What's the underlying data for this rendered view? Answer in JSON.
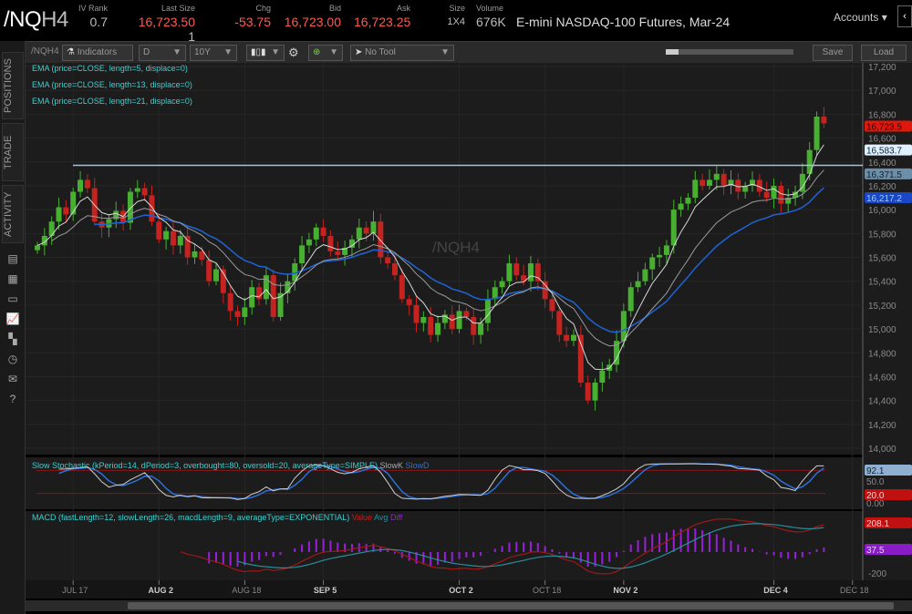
{
  "header": {
    "symbol_main": "/NQ",
    "symbol_suffix": "H4",
    "quotes": [
      {
        "label": "IV Rank",
        "value": "0.7"
      },
      {
        "label": "Last Size",
        "value": "16,723.50",
        "size": "1"
      },
      {
        "label": "Chg",
        "value": "-53.75"
      },
      {
        "label": "Bid",
        "value": "16,723.00"
      },
      {
        "label": "Ask",
        "value": "16,723.25"
      },
      {
        "label": "Size",
        "value": "1X4"
      },
      {
        "label": "Volume",
        "value": "676K"
      }
    ],
    "description": "E-mini NASDAQ-100 Futures, Mar-24",
    "accounts": "Accounts"
  },
  "toolbar": {
    "symbol": "/NQH4",
    "indicators": "Indicators",
    "aggregation": "D",
    "timeframe": "10Y",
    "tool": "No Tool",
    "save": "Save",
    "load": "Load"
  },
  "sidebar": {
    "tabs": [
      "POSITIONS",
      "TRADE",
      "ACTIVITY"
    ]
  },
  "studies": [
    "EMA (price=CLOSE, length=5, displace=0)",
    "EMA (price=CLOSE, length=13, displace=0)",
    "EMA (price=CLOSE, length=21, displace=0)"
  ],
  "watermark": "/NQH4",
  "price_labels": {
    "last": "16,723.5",
    "ema5": "16,583.7",
    "hline": "16,371.5",
    "ema21": "16,217.2"
  },
  "stoch": {
    "title": "Slow Stochastic (kPeriod=14, dPeriod=3, overbought=80, oversold=20, averageType=SIMPLE)",
    "k": "SlowK",
    "d": "SlowD",
    "labels": {
      "k": "92.1",
      "mid": "50.0",
      "os": "20.0",
      "zero": "0.00"
    }
  },
  "macd": {
    "title": "MACD (fastLength=12, slowLength=26, macdLength=9, averageType=EXPONENTIAL)",
    "value": "Value",
    "avg": "Avg",
    "diff": "Diff",
    "labels": {
      "value": "208.1",
      "diff": "37.5",
      "neg": "-200"
    }
  },
  "colors": {
    "up": "#47b031",
    "down": "#c4231f",
    "ema5": "#d8d8d8",
    "ema13": "#9a9a9a",
    "ema21": "#1f63d6",
    "hline": "#9fc3e0",
    "macd_value": "#a01818",
    "macd_avg": "#2a8c9c",
    "macd_diff": "#9a1fd8"
  },
  "chart_data": {
    "type": "candlestick",
    "title": "/NQH4",
    "ylim": [
      13900,
      17300
    ],
    "y_ticks": [
      14000,
      14200,
      14400,
      14600,
      14800,
      15000,
      15200,
      15400,
      15600,
      15800,
      16000,
      16200,
      16400,
      16600,
      16800,
      17000,
      17200
    ],
    "x_ticks": [
      {
        "i": 5,
        "label": "JUL 17"
      },
      {
        "i": 17,
        "label": "AUG 2",
        "bold": true
      },
      {
        "i": 29,
        "label": "AUG 18"
      },
      {
        "i": 40,
        "label": "SEP 5",
        "bold": true
      },
      {
        "i": 59,
        "label": "OCT 2",
        "bold": true
      },
      {
        "i": 71,
        "label": "OCT 18"
      },
      {
        "i": 82,
        "label": "NOV 2",
        "bold": true
      },
      {
        "i": 103,
        "label": "DEC 4",
        "bold": true
      },
      {
        "i": 114,
        "label": "DEC 18"
      }
    ],
    "horizontal_line": 16371.5,
    "close": [
      15700,
      15780,
      15900,
      16020,
      15960,
      16150,
      16250,
      16180,
      15900,
      15850,
      15920,
      15990,
      15890,
      16150,
      16180,
      16120,
      15900,
      15750,
      15820,
      15700,
      15780,
      15600,
      15650,
      15580,
      15400,
      15500,
      15300,
      15150,
      15100,
      15180,
      15350,
      15250,
      15450,
      15100,
      15300,
      15400,
      15550,
      15700,
      15750,
      15850,
      15780,
      15650,
      15620,
      15680,
      15750,
      15850,
      15800,
      15900,
      15600,
      15550,
      15450,
      15250,
      15200,
      15050,
      15100,
      14950,
      15050,
      15120,
      15000,
      15150,
      15100,
      14950,
      15050,
      15250,
      15350,
      15400,
      15550,
      15450,
      15400,
      15550,
      15400,
      15250,
      15150,
      14950,
      14900,
      14950,
      14550,
      14400,
      14550,
      14650,
      14700,
      14900,
      15150,
      15350,
      15400,
      15500,
      15600,
      15620,
      15700,
      16000,
      16050,
      16100,
      16250,
      16200,
      16250,
      16300,
      16200,
      16250,
      16150,
      16200,
      16250,
      16150,
      16100,
      16200,
      16050,
      16100,
      16150,
      16300,
      16500,
      16780,
      16723.5
    ]
  }
}
